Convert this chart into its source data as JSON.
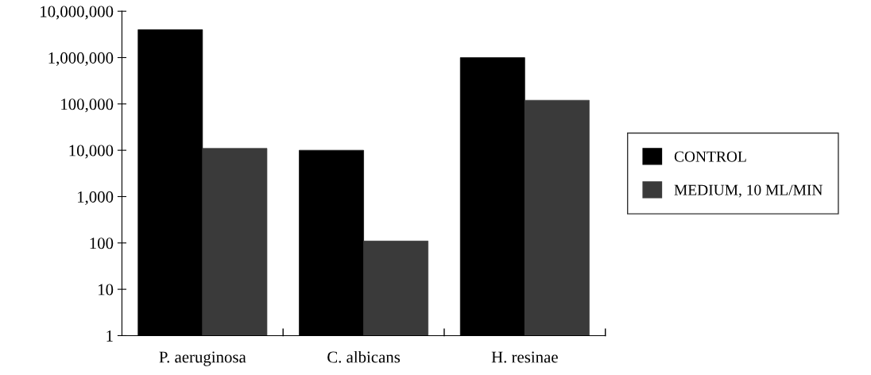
{
  "chart_data": {
    "type": "bar",
    "categories": [
      "P. aeruginosa",
      "C. albicans",
      "H. resinae"
    ],
    "series": [
      {
        "name": "CONTROL",
        "color": "#000000",
        "values": [
          4000000,
          10000,
          1000000
        ]
      },
      {
        "name": "MEDIUM, 10 ML/MIN",
        "color": "#3a3a3a",
        "values": [
          11000,
          110,
          120000
        ]
      }
    ],
    "log": true,
    "ylim": [
      1,
      10000000
    ],
    "yticks": [
      {
        "value": 1,
        "label": "1"
      },
      {
        "value": 10,
        "label": "10"
      },
      {
        "value": 100,
        "label": "100"
      },
      {
        "value": 1000,
        "label": "1,000"
      },
      {
        "value": 10000,
        "label": "10,000"
      },
      {
        "value": 100000,
        "label": "100,000"
      },
      {
        "value": 1000000,
        "label": "1,000,000"
      },
      {
        "value": 10000000,
        "label": "10,000,000"
      }
    ],
    "grid": false,
    "legend": "right"
  }
}
